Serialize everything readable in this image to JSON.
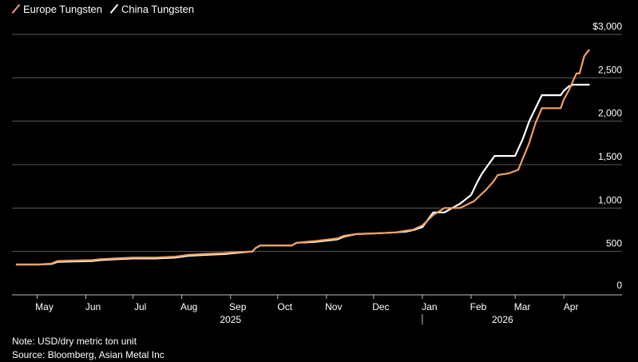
{
  "chart_data": {
    "type": "line",
    "title": "",
    "xlabel": "",
    "ylabel": "",
    "ylim": [
      0,
      3000
    ],
    "xlim": [
      "2025-04-15",
      "2026-05-08"
    ],
    "grid": true,
    "legend_position": "top-left",
    "y_ticks": [
      "0",
      "500",
      "1,000",
      "1,500",
      "2,000",
      "2,500",
      "$3,000"
    ],
    "y_tick_values": [
      0,
      500,
      1000,
      1500,
      2000,
      2500,
      3000
    ],
    "x_ticks": [
      {
        "label": "May",
        "date": "2025-05-01"
      },
      {
        "label": "Jun",
        "date": "2025-06-01"
      },
      {
        "label": "Jul",
        "date": "2025-07-01"
      },
      {
        "label": "Aug",
        "date": "2025-08-01"
      },
      {
        "label": "Sep",
        "date": "2025-09-01"
      },
      {
        "label": "Oct",
        "date": "2025-10-01"
      },
      {
        "label": "Nov",
        "date": "2025-11-01"
      },
      {
        "label": "Dec",
        "date": "2025-12-01"
      },
      {
        "label": "Jan",
        "date": "2026-01-01"
      },
      {
        "label": "Feb",
        "date": "2026-02-01"
      },
      {
        "label": "Mar",
        "date": "2026-03-01"
      },
      {
        "label": "Apr",
        "date": "2026-04-01"
      }
    ],
    "year_labels": [
      {
        "label": "2025",
        "center": "2025-09-01"
      },
      {
        "label": "2026",
        "center": "2026-02-21"
      }
    ],
    "year_divider": "2026-01-01",
    "series": [
      {
        "name": "Europe Tungsten",
        "color": "#f0a060",
        "x": [
          "2025-04-18",
          "2025-05-02",
          "2025-05-10",
          "2025-05-14",
          "2025-06-05",
          "2025-06-10",
          "2025-06-20",
          "2025-07-01",
          "2025-07-15",
          "2025-07-28",
          "2025-08-05",
          "2025-08-15",
          "2025-08-28",
          "2025-09-03",
          "2025-09-15",
          "2025-09-17",
          "2025-09-20",
          "2025-10-10",
          "2025-10-13",
          "2025-10-25",
          "2025-11-08",
          "2025-11-12",
          "2025-11-20",
          "2025-12-05",
          "2025-12-15",
          "2025-12-22",
          "2025-12-26",
          "2026-01-01",
          "2026-01-08",
          "2026-01-15",
          "2026-01-20",
          "2026-01-25",
          "2026-02-03",
          "2026-02-07",
          "2026-02-10",
          "2026-02-15",
          "2026-02-18",
          "2026-02-25",
          "2026-02-28",
          "2026-03-03",
          "2026-03-10",
          "2026-03-14",
          "2026-03-18",
          "2026-03-25",
          "2026-03-30",
          "2026-04-01",
          "2026-04-04",
          "2026-04-09",
          "2026-04-11",
          "2026-04-14",
          "2026-04-17"
        ],
        "values": [
          350,
          350,
          360,
          390,
          400,
          410,
          420,
          430,
          430,
          440,
          460,
          470,
          480,
          490,
          500,
          540,
          570,
          570,
          600,
          620,
          650,
          680,
          700,
          710,
          720,
          740,
          750,
          800,
          920,
          1000,
          1000,
          1000,
          1080,
          1150,
          1200,
          1300,
          1380,
          1400,
          1420,
          1440,
          1750,
          1980,
          2150,
          2150,
          2150,
          2250,
          2350,
          2550,
          2550,
          2750,
          2820
        ]
      },
      {
        "name": "China Tungsten",
        "color": "#ffffff",
        "x": [
          "2025-04-18",
          "2025-05-02",
          "2025-05-10",
          "2025-05-14",
          "2025-06-05",
          "2025-06-10",
          "2025-06-20",
          "2025-07-01",
          "2025-07-15",
          "2025-07-28",
          "2025-08-05",
          "2025-08-15",
          "2025-08-28",
          "2025-09-03",
          "2025-09-15",
          "2025-09-17",
          "2025-09-20",
          "2025-10-10",
          "2025-10-13",
          "2025-10-25",
          "2025-11-08",
          "2025-11-12",
          "2025-11-20",
          "2025-12-05",
          "2025-12-15",
          "2025-12-22",
          "2025-12-27",
          "2026-01-01",
          "2026-01-08",
          "2026-01-15",
          "2026-01-20",
          "2026-01-25",
          "2026-02-01",
          "2026-02-05",
          "2026-02-08",
          "2026-02-12",
          "2026-02-16",
          "2026-02-25",
          "2026-03-01",
          "2026-03-06",
          "2026-03-10",
          "2026-03-14",
          "2026-03-18",
          "2026-03-22",
          "2026-03-30",
          "2026-04-01",
          "2026-04-04",
          "2026-04-07",
          "2026-04-14",
          "2026-04-17"
        ],
        "values": [
          350,
          350,
          355,
          380,
          390,
          400,
          410,
          420,
          420,
          430,
          450,
          460,
          470,
          480,
          500,
          540,
          570,
          570,
          600,
          610,
          640,
          670,
          700,
          710,
          720,
          730,
          750,
          780,
          950,
          950,
          1000,
          1050,
          1150,
          1300,
          1400,
          1500,
          1600,
          1600,
          1600,
          1800,
          2000,
          2150,
          2300,
          2300,
          2300,
          2350,
          2400,
          2420,
          2420,
          2420
        ]
      }
    ]
  },
  "note": "Note: USD/dry metric ton unit",
  "source": "Source: Bloomberg, Asian Metal Inc"
}
